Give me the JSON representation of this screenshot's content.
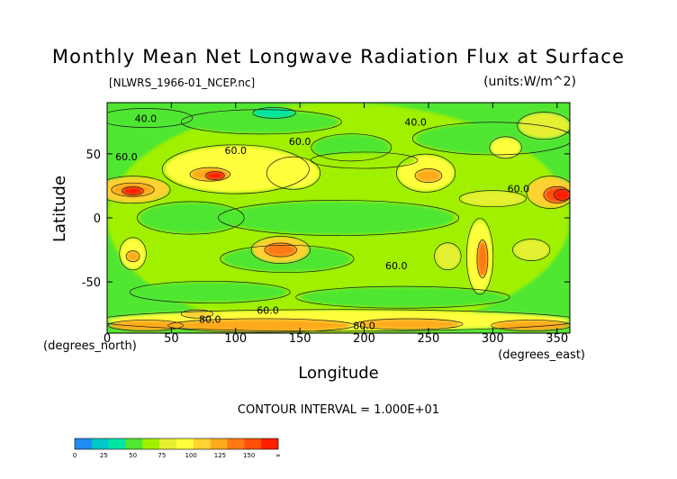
{
  "chart_data": {
    "type": "heatmap",
    "title": "Monthly Mean Net Longwave Radiation Flux at Surface",
    "file_label": "[NLWRS_1966-01_NCEP.nc]",
    "units_label": "(units:W/m^2)",
    "xlabel": "Longitude",
    "ylabel": "Latitude",
    "x_unit_label": "(degrees_east)",
    "y_unit_label": "(degrees_north)",
    "xlim": [
      0,
      360
    ],
    "ylim": [
      -90,
      90
    ],
    "x_ticks": [
      0,
      50,
      100,
      150,
      200,
      250,
      300,
      350
    ],
    "y_ticks": [
      -50,
      0,
      50
    ],
    "contour_interval_label": "CONTOUR INTERVAL = 1.000E+01",
    "contour_labels": [
      {
        "text": "40.0",
        "lon": 30,
        "lat": 75
      },
      {
        "text": "40.0",
        "lon": 240,
        "lat": 72
      },
      {
        "text": "60.0",
        "lon": 15,
        "lat": 45
      },
      {
        "text": "60.0",
        "lon": 150,
        "lat": 57
      },
      {
        "text": "60.0",
        "lon": 100,
        "lat": 50
      },
      {
        "text": "60.0",
        "lon": 320,
        "lat": 20
      },
      {
        "text": "60.0",
        "lon": 225,
        "lat": -40
      },
      {
        "text": "60.0",
        "lon": 125,
        "lat": -75
      },
      {
        "text": "80.0",
        "lon": 80,
        "lat": -82
      },
      {
        "text": "80.0",
        "lon": 200,
        "lat": -87
      }
    ],
    "colorbar": {
      "tick_labels": [
        "0",
        "25",
        "50",
        "75",
        "100",
        "125",
        "150",
        "∞"
      ],
      "colors": [
        "#1e8cf0",
        "#00c8c8",
        "#00e6a0",
        "#50e632",
        "#a0f000",
        "#e6f032",
        "#ffff3c",
        "#ffd232",
        "#ffaa1e",
        "#ff7814",
        "#ff500a",
        "#ff1e00"
      ]
    },
    "regions": [
      {
        "lon": 180,
        "lat": 0,
        "rx": 180,
        "ry": 90,
        "value": 55
      },
      {
        "lon": 180,
        "lat": 0,
        "rx": 90,
        "ry": 13,
        "value": 48
      },
      {
        "lon": 65,
        "lat": 0,
        "rx": 40,
        "ry": 12,
        "value": 47
      },
      {
        "lon": 80,
        "lat": -58,
        "rx": 60,
        "ry": 8,
        "value": 47
      },
      {
        "lon": 230,
        "lat": -62,
        "rx": 80,
        "ry": 8,
        "value": 47
      },
      {
        "lon": 140,
        "lat": -32,
        "rx": 50,
        "ry": 10,
        "value": 48
      },
      {
        "lon": 300,
        "lat": 62,
        "rx": 60,
        "ry": 12,
        "value": 48
      },
      {
        "lon": 190,
        "lat": 55,
        "rx": 30,
        "ry": 10,
        "value": 49
      },
      {
        "lon": 120,
        "lat": 75,
        "rx": 60,
        "ry": 9,
        "value": 45
      },
      {
        "lon": 130,
        "lat": 82,
        "rx": 16,
        "ry": 4,
        "value": 32
      },
      {
        "lon": 30,
        "lat": 78,
        "rx": 35,
        "ry": 7,
        "value": 45
      },
      {
        "lon": 100,
        "lat": 38,
        "rx": 55,
        "ry": 18,
        "value": 78
      },
      {
        "lon": 80,
        "lat": 34,
        "rx": 15,
        "ry": 5,
        "value": 112
      },
      {
        "lon": 84,
        "lat": 33,
        "rx": 7,
        "ry": 3,
        "value": 140
      },
      {
        "lon": 145,
        "lat": 35,
        "rx": 20,
        "ry": 12,
        "value": 80
      },
      {
        "lon": 20,
        "lat": 22,
        "rx": 28,
        "ry": 10,
        "value": 90
      },
      {
        "lon": 20,
        "lat": 22,
        "rx": 16,
        "ry": 5,
        "value": 112
      },
      {
        "lon": 20,
        "lat": 21,
        "rx": 8,
        "ry": 3,
        "value": 140
      },
      {
        "lon": 248,
        "lat": 35,
        "rx": 22,
        "ry": 14,
        "value": 85
      },
      {
        "lon": 250,
        "lat": 33,
        "rx": 10,
        "ry": 5,
        "value": 112
      },
      {
        "lon": 345,
        "lat": 20,
        "rx": 18,
        "ry": 12,
        "value": 95
      },
      {
        "lon": 350,
        "lat": 18,
        "rx": 10,
        "ry": 6,
        "value": 125
      },
      {
        "lon": 354,
        "lat": 18,
        "rx": 6,
        "ry": 4,
        "value": 150
      },
      {
        "lon": 20,
        "lat": -28,
        "rx": 10,
        "ry": 12,
        "value": 82
      },
      {
        "lon": 20,
        "lat": -30,
        "rx": 5,
        "ry": 4,
        "value": 112
      },
      {
        "lon": 135,
        "lat": -25,
        "rx": 22,
        "ry": 10,
        "value": 88
      },
      {
        "lon": 135,
        "lat": -25,
        "rx": 12,
        "ry": 5,
        "value": 115
      },
      {
        "lon": 290,
        "lat": -30,
        "rx": 10,
        "ry": 28,
        "value": 80
      },
      {
        "lon": 292,
        "lat": -32,
        "rx": 4,
        "ry": 14,
        "value": 115
      },
      {
        "lon": 330,
        "lat": -25,
        "rx": 14,
        "ry": 8,
        "value": 72
      },
      {
        "lon": 265,
        "lat": -30,
        "rx": 10,
        "ry": 10,
        "value": 64
      },
      {
        "lon": 180,
        "lat": -80,
        "rx": 180,
        "ry": 8,
        "value": 80
      },
      {
        "lon": 120,
        "lat": -84,
        "rx": 70,
        "ry": 5,
        "value": 100
      },
      {
        "lon": 235,
        "lat": -83,
        "rx": 40,
        "ry": 4,
        "value": 105
      },
      {
        "lon": 30,
        "lat": -84,
        "rx": 28,
        "ry": 4,
        "value": 108
      },
      {
        "lon": 330,
        "lat": -84,
        "rx": 30,
        "ry": 4,
        "value": 100
      },
      {
        "lon": 70,
        "lat": -75,
        "rx": 12,
        "ry": 3,
        "value": 95
      },
      {
        "lon": 310,
        "lat": 55,
        "rx": 12,
        "ry": 8,
        "value": 80
      },
      {
        "lon": 340,
        "lat": 72,
        "rx": 20,
        "ry": 10,
        "value": 70
      },
      {
        "lon": 200,
        "lat": 45,
        "rx": 40,
        "ry": 6,
        "value": 62
      },
      {
        "lon": 300,
        "lat": 15,
        "rx": 25,
        "ry": 6,
        "value": 70
      }
    ]
  }
}
